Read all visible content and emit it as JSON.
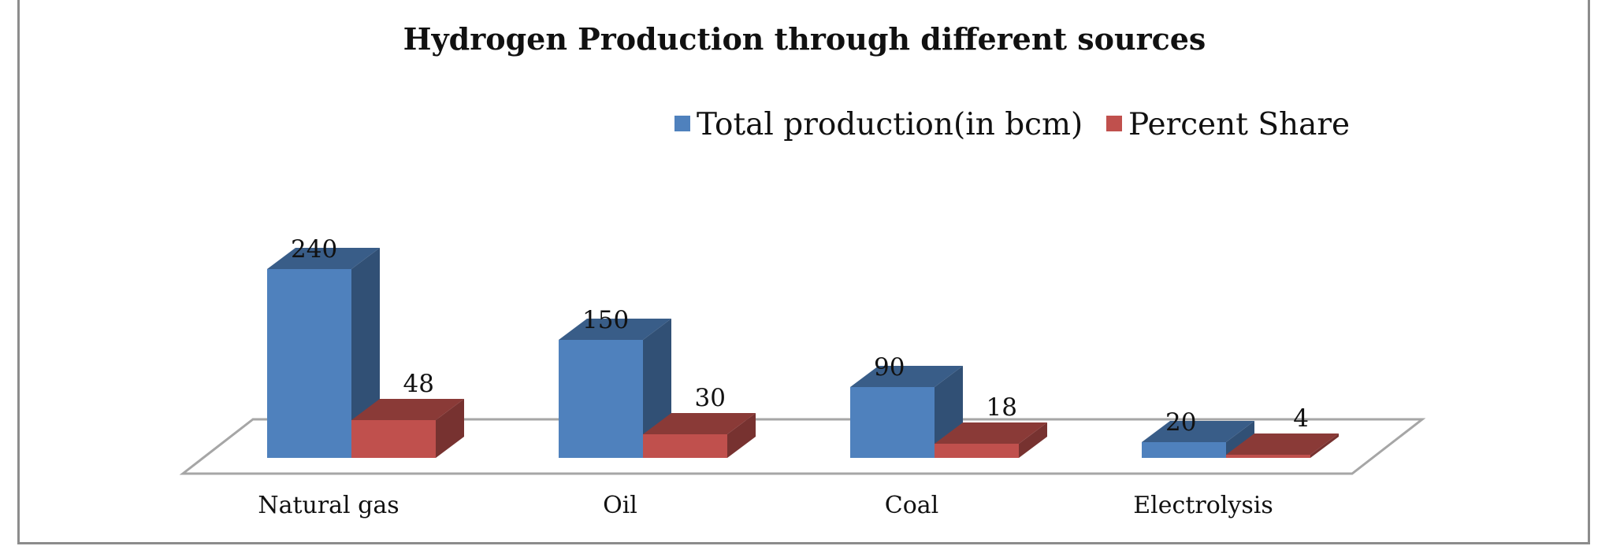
{
  "chart_data": {
    "type": "bar",
    "title": "Hydrogen Production through different sources",
    "categories": [
      "Natural gas",
      "Oil",
      "Coal",
      "Electrolysis"
    ],
    "series": [
      {
        "name": "Total production(in bcm)",
        "values": [
          240,
          150,
          90,
          20
        ],
        "color": "#4f81bd"
      },
      {
        "name": "Percent Share",
        "values": [
          48,
          30,
          18,
          4
        ],
        "color": "#c0504d"
      }
    ],
    "legend_position": "top",
    "grid": false,
    "three_d": true
  }
}
